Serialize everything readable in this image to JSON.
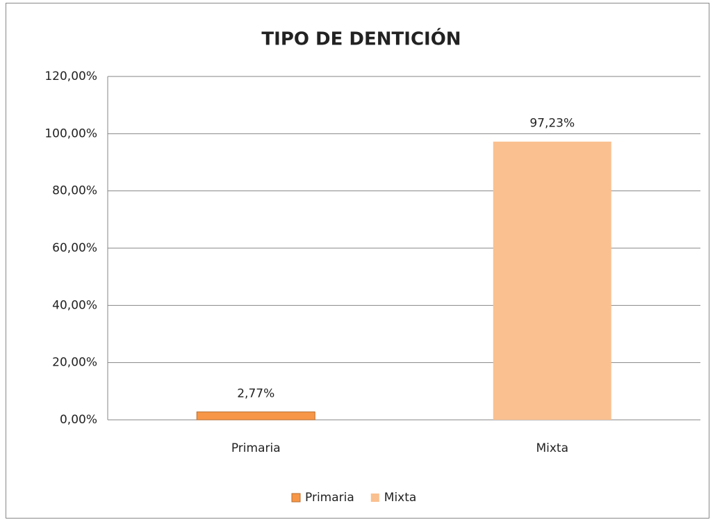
{
  "chart_data": {
    "type": "bar",
    "title": "TIPO DE DENTICIÓN",
    "categories": [
      "Primaria",
      "Mixta"
    ],
    "values": [
      2.77,
      97.23
    ],
    "value_labels": [
      "2,77%",
      "97,23%"
    ],
    "colors": [
      "#f79646",
      "#fac090"
    ],
    "ylim": [
      0,
      120
    ],
    "yticks": [
      {
        "value": 0,
        "label": "0,00%"
      },
      {
        "value": 20,
        "label": "20,00%"
      },
      {
        "value": 40,
        "label": "40,00%"
      },
      {
        "value": 60,
        "label": "60,00%"
      },
      {
        "value": 80,
        "label": "80,00%"
      },
      {
        "value": 100,
        "label": "100,00%"
      },
      {
        "value": 120,
        "label": "120,00%"
      }
    ],
    "grid": true,
    "legend": "bottom"
  }
}
